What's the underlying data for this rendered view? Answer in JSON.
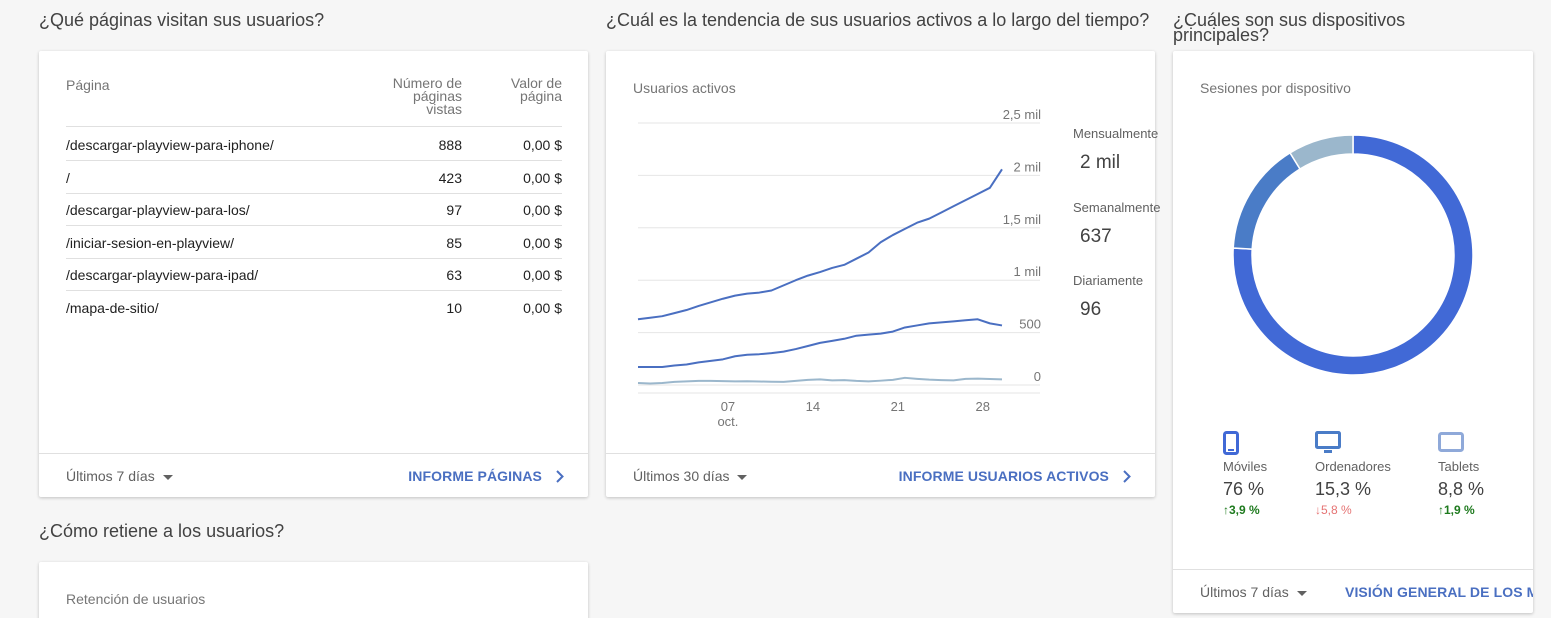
{
  "questions": {
    "pages": "¿Qué páginas visitan sus usuarios?",
    "trend": "¿Cuál es la tendencia de sus usuarios activos a lo largo del tiempo?",
    "devices": "¿Cuáles son sus dispositivos principales?",
    "retention": "¿Cómo retiene a los usuarios?"
  },
  "pages_card": {
    "headers": {
      "page": "Página",
      "views": "Número de páginas vistas",
      "value": "Valor de página"
    },
    "rows": [
      {
        "page": "/descargar-playview-para-iphone/",
        "views": "888",
        "value": "0,00 $"
      },
      {
        "page": "/",
        "views": "423",
        "value": "0,00 $"
      },
      {
        "page": "/descargar-playview-para-los/",
        "views": "97",
        "value": "0,00 $"
      },
      {
        "page": "/iniciar-sesion-en-playview/",
        "views": "85",
        "value": "0,00 $"
      },
      {
        "page": "/descargar-playview-para-ipad/",
        "views": "63",
        "value": "0,00 $"
      },
      {
        "page": "/mapa-de-sitio/",
        "views": "10",
        "value": "0,00 $"
      }
    ],
    "range": "Últimos 7 días",
    "link": "INFORME PÁGINAS"
  },
  "active_card": {
    "title": "Usuarios activos",
    "range": "Últimos 30 días",
    "link": "INFORME USUARIOS ACTIVOS",
    "summary": [
      {
        "label": "Mensualmente",
        "value": "2 mil"
      },
      {
        "label": "Semanalmente",
        "value": "637"
      },
      {
        "label": "Diariamente",
        "value": "96"
      }
    ]
  },
  "chart_data": {
    "type": "line",
    "y_tick_labels": [
      "0",
      "500",
      "1 mil",
      "1,5 mil",
      "2 mil",
      "2,5 mil"
    ],
    "y_ticks": [
      0,
      500,
      1000,
      1500,
      2000,
      2500
    ],
    "ylim": [
      0,
      2500
    ],
    "x_tick_labels": [
      {
        "day": "07",
        "month": "oct.",
        "x": 7
      },
      {
        "day": "14",
        "month": "",
        "x": 14
      },
      {
        "day": "21",
        "month": "",
        "x": 21
      },
      {
        "day": "28",
        "month": "",
        "x": 28
      }
    ],
    "x": [
      0,
      1,
      2,
      3,
      4,
      5,
      6,
      7,
      8,
      9,
      10,
      11,
      12,
      13,
      14,
      15,
      16,
      17,
      18,
      19,
      20,
      21,
      22,
      23,
      24,
      25,
      26,
      27,
      28,
      29,
      30
    ],
    "series": [
      {
        "color": "#4a6fc1",
        "values": [
          560,
          575,
          590,
          620,
          650,
          690,
          725,
          760,
          790,
          810,
          820,
          840,
          890,
          940,
          985,
          1020,
          1060,
          1090,
          1150,
          1210,
          1310,
          1380,
          1440,
          1500,
          1540,
          1600,
          1660,
          1720,
          1780,
          1840,
          2020
        ]
      },
      {
        "color": "#4a6fc1",
        "values": [
          95,
          95,
          95,
          110,
          120,
          140,
          155,
          170,
          200,
          215,
          220,
          230,
          245,
          270,
          300,
          330,
          350,
          370,
          400,
          410,
          420,
          440,
          480,
          500,
          520,
          530,
          540,
          550,
          560,
          520,
          500
        ]
      },
      {
        "color": "#9bb7cc",
        "values": [
          -60,
          -65,
          -60,
          -50,
          -45,
          -40,
          -40,
          -42,
          -45,
          -44,
          -46,
          -48,
          -50,
          -40,
          -30,
          -25,
          -35,
          -32,
          -40,
          -45,
          -38,
          -30,
          -10,
          -20,
          -28,
          -32,
          -35,
          -20,
          -18,
          -22,
          -25
        ]
      }
    ]
  },
  "devices_card": {
    "title": "Sesiones por dispositivo",
    "range": "Últimos 7 días",
    "link": "VISIÓN GENERAL DE LOS MÓVILES",
    "colors": {
      "mobile": "#4169d6",
      "desktop": "#4a7cc7",
      "tablet": "#9bb7cc",
      "up": "#1e7a1e",
      "down": "#e57373"
    },
    "items": [
      {
        "name": "Móviles",
        "pct": "76 %",
        "share": 76.0,
        "change": "3,9 %",
        "direction": "up",
        "icon": "mobile-icon"
      },
      {
        "name": "Ordenadores",
        "pct": "15,3 %",
        "share": 15.3,
        "change": "5,8 %",
        "direction": "down",
        "icon": "desktop-icon"
      },
      {
        "name": "Tablets",
        "pct": "8,8 %",
        "share": 8.8,
        "change": "1,9 %",
        "direction": "up",
        "icon": "tablet-icon"
      }
    ]
  },
  "retention_card": {
    "title": "Retención de usuarios"
  }
}
